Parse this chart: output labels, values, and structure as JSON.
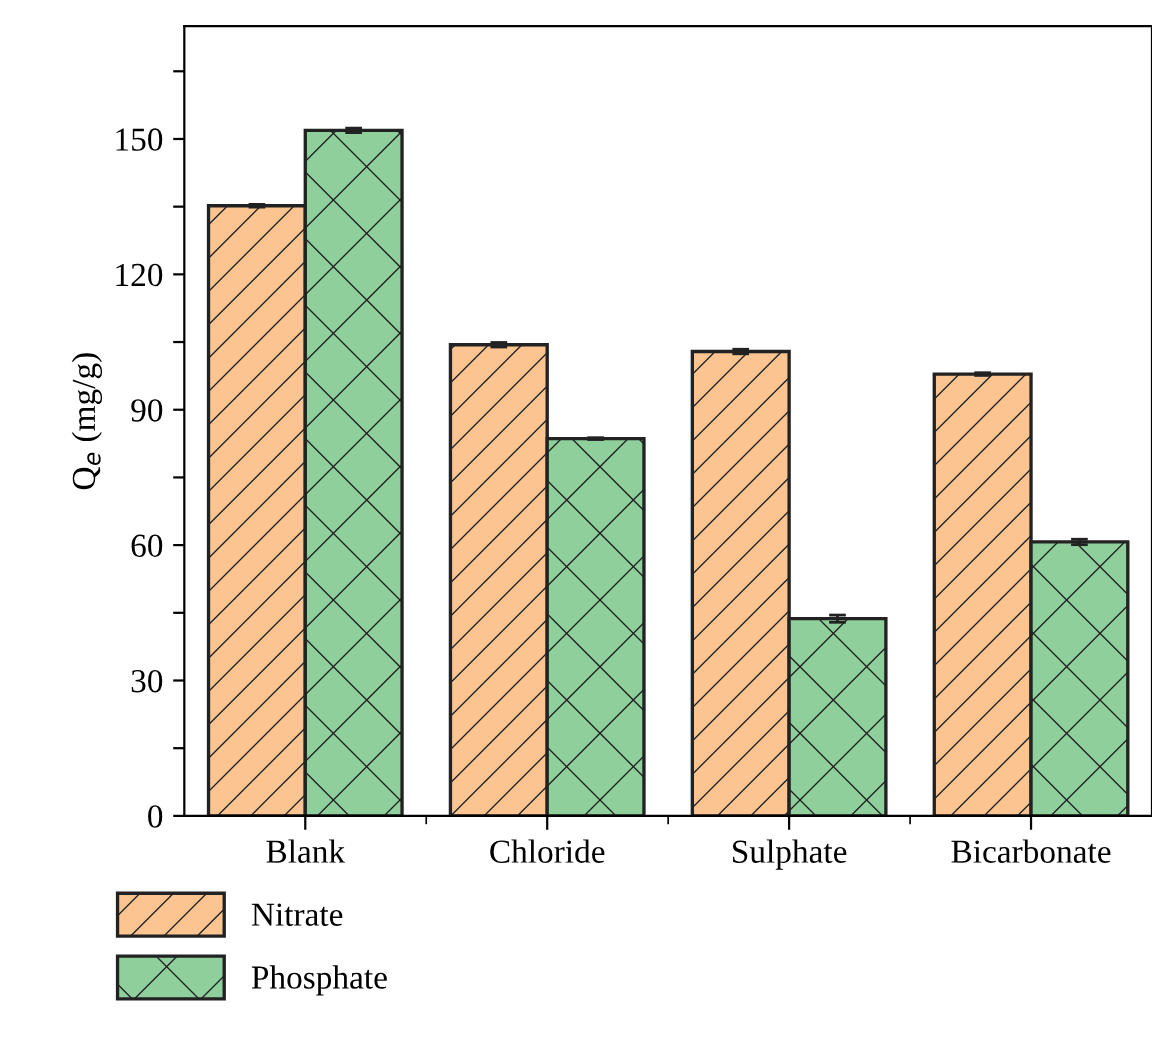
{
  "chart_data": {
    "type": "bar",
    "ylabel": "Q$_{e}$ (mg/g)",
    "categories": [
      "Blank",
      "Chloride",
      "Sulphate",
      "Bicarbonate"
    ],
    "series": [
      {
        "name": "Nitrate",
        "color": "#fbc490",
        "values": [
          135.2,
          104.4,
          102.9,
          97.9
        ],
        "errors": [
          0.3,
          0.5,
          0.5,
          0.3
        ]
      },
      {
        "name": "Phosphate",
        "color": "#8ecf9c",
        "values": [
          151.9,
          83.6,
          43.7,
          60.7
        ],
        "errors": [
          0.5,
          0.2,
          0.8,
          0.6
        ]
      }
    ],
    "ylim": [
      0,
      175
    ],
    "yticks": [
      0,
      {
        "value": 15,
        "label": null
      },
      30,
      {
        "value": 45,
        "label": null
      },
      60,
      {
        "value": 75,
        "label": null
      },
      90,
      {
        "value": 105,
        "label": null
      },
      120,
      {
        "value": 135,
        "label": null
      },
      150,
      {
        "value": 165,
        "label": null
      }
    ],
    "grid": false,
    "legend": "bottom left"
  }
}
